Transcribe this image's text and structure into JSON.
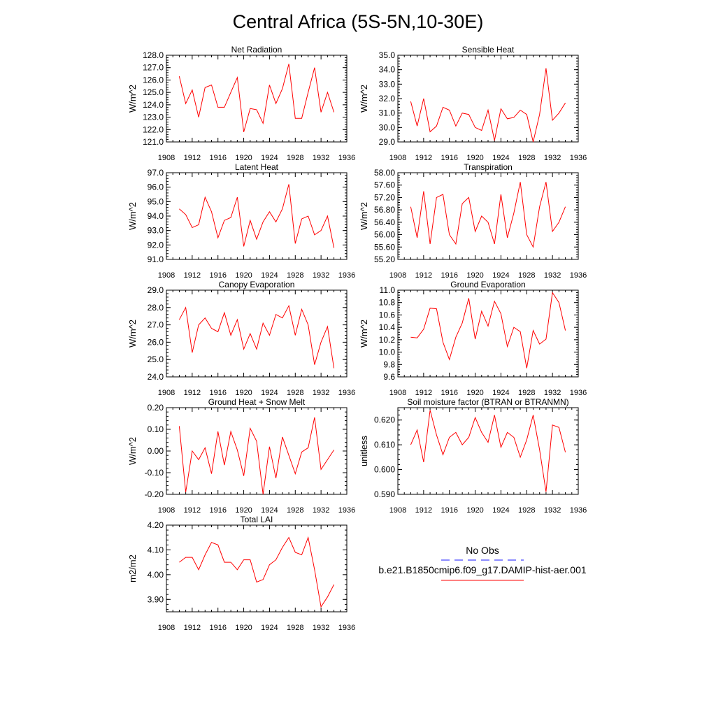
{
  "page_title": "Central Africa (5S-5N,10-30E)",
  "legend": {
    "obs_label": "No Obs",
    "obs_color": "#1a1aff",
    "model_label": "b.e21.B1850cmip6.f09_g17.DAMIP-hist-aer.001",
    "model_color": "#ff0000"
  },
  "chart_data": [
    {
      "type": "line",
      "title": "Net Radiation",
      "ylabel": "W/m^2",
      "xlim": [
        1908,
        1936
      ],
      "x_ticks": [
        1908,
        1912,
        1916,
        1920,
        1924,
        1928,
        1932,
        1936
      ],
      "ylim": [
        121.0,
        128.0
      ],
      "y_ticks": [
        "121.0",
        "122.0",
        "123.0",
        "124.0",
        "125.0",
        "126.0",
        "127.0",
        "128.0"
      ],
      "x": [
        1910,
        1911,
        1912,
        1913,
        1914,
        1915,
        1916,
        1917,
        1918,
        1919,
        1920,
        1921,
        1922,
        1923,
        1924,
        1925,
        1926,
        1927,
        1928,
        1929,
        1930,
        1931,
        1932,
        1933,
        1934
      ],
      "values": [
        126.3,
        124.1,
        125.2,
        123.0,
        125.4,
        125.6,
        123.8,
        123.8,
        125.0,
        126.2,
        121.8,
        123.7,
        123.6,
        122.5,
        125.6,
        124.1,
        125.3,
        127.3,
        122.9,
        122.9,
        125.0,
        127.0,
        123.4,
        125.0,
        123.4
      ],
      "color": "#ff0000"
    },
    {
      "type": "line",
      "title": "Sensible Heat",
      "ylabel": "W/m^2",
      "xlim": [
        1908,
        1936
      ],
      "x_ticks": [
        1908,
        1912,
        1916,
        1920,
        1924,
        1928,
        1932,
        1936
      ],
      "ylim": [
        29.0,
        35.0
      ],
      "y_ticks": [
        "29.0",
        "30.0",
        "31.0",
        "32.0",
        "33.0",
        "34.0",
        "35.0"
      ],
      "x": [
        1910,
        1911,
        1912,
        1913,
        1914,
        1915,
        1916,
        1917,
        1918,
        1919,
        1920,
        1921,
        1922,
        1923,
        1924,
        1925,
        1926,
        1927,
        1928,
        1929,
        1930,
        1931,
        1932,
        1933,
        1934
      ],
      "values": [
        31.8,
        30.1,
        32.0,
        29.7,
        30.1,
        31.4,
        31.2,
        30.1,
        31.0,
        30.9,
        30.0,
        29.8,
        31.2,
        29.1,
        31.3,
        30.6,
        30.7,
        31.2,
        30.9,
        29.0,
        30.9,
        34.1,
        30.5,
        31.0,
        31.7
      ],
      "color": "#ff0000"
    },
    {
      "type": "line",
      "title": "Latent Heat",
      "ylabel": "W/m^2",
      "xlim": [
        1908,
        1936
      ],
      "x_ticks": [
        1908,
        1912,
        1916,
        1920,
        1924,
        1928,
        1932,
        1936
      ],
      "ylim": [
        91.0,
        97.0
      ],
      "y_ticks": [
        "91.0",
        "92.0",
        "93.0",
        "94.0",
        "95.0",
        "96.0",
        "97.0"
      ],
      "x": [
        1910,
        1911,
        1912,
        1913,
        1914,
        1915,
        1916,
        1917,
        1918,
        1919,
        1920,
        1921,
        1922,
        1923,
        1924,
        1925,
        1926,
        1927,
        1928,
        1929,
        1930,
        1931,
        1932,
        1933,
        1934
      ],
      "values": [
        94.5,
        94.1,
        93.2,
        93.4,
        95.3,
        94.3,
        92.5,
        93.7,
        93.9,
        95.3,
        91.9,
        93.7,
        92.4,
        93.6,
        94.3,
        93.6,
        94.5,
        96.2,
        92.1,
        93.8,
        94.0,
        92.7,
        93.0,
        94.0,
        91.8
      ],
      "color": "#ff0000"
    },
    {
      "type": "line",
      "title": "Transpiration",
      "ylabel": "W/m^2",
      "xlim": [
        1908,
        1936
      ],
      "x_ticks": [
        1908,
        1912,
        1916,
        1920,
        1924,
        1928,
        1932,
        1936
      ],
      "ylim": [
        55.2,
        58.0
      ],
      "y_ticks": [
        "55.20",
        "55.60",
        "56.00",
        "56.40",
        "56.80",
        "57.20",
        "57.60",
        "58.00"
      ],
      "x": [
        1910,
        1911,
        1912,
        1913,
        1914,
        1915,
        1916,
        1917,
        1918,
        1919,
        1920,
        1921,
        1922,
        1923,
        1924,
        1925,
        1926,
        1927,
        1928,
        1929,
        1930,
        1931,
        1932,
        1933,
        1934
      ],
      "values": [
        56.9,
        55.9,
        57.4,
        55.7,
        57.2,
        57.3,
        56.0,
        55.7,
        57.0,
        57.2,
        56.1,
        56.6,
        56.4,
        55.7,
        57.3,
        55.9,
        56.7,
        57.7,
        56.0,
        55.6,
        56.9,
        57.7,
        56.1,
        56.4,
        56.9
      ],
      "color": "#ff0000"
    },
    {
      "type": "line",
      "title": "Canopy Evaporation",
      "ylabel": "W/m^2",
      "xlim": [
        1908,
        1936
      ],
      "x_ticks": [
        1908,
        1912,
        1916,
        1920,
        1924,
        1928,
        1932,
        1936
      ],
      "ylim": [
        24.0,
        29.0
      ],
      "y_ticks": [
        "24.0",
        "25.0",
        "26.0",
        "27.0",
        "28.0",
        "29.0"
      ],
      "x": [
        1910,
        1911,
        1912,
        1913,
        1914,
        1915,
        1916,
        1917,
        1918,
        1919,
        1920,
        1921,
        1922,
        1923,
        1924,
        1925,
        1926,
        1927,
        1928,
        1929,
        1930,
        1931,
        1932,
        1933,
        1934
      ],
      "values": [
        27.3,
        28.0,
        25.4,
        27.0,
        27.4,
        26.8,
        26.6,
        27.7,
        26.4,
        27.3,
        25.6,
        26.5,
        25.6,
        27.1,
        26.4,
        27.6,
        27.4,
        28.1,
        26.4,
        27.9,
        27.0,
        24.7,
        26.0,
        26.9,
        24.5
      ],
      "color": "#ff0000"
    },
    {
      "type": "line",
      "title": "Ground Evaporation",
      "ylabel": "W/m^2",
      "xlim": [
        1908,
        1936
      ],
      "x_ticks": [
        1908,
        1912,
        1916,
        1920,
        1924,
        1928,
        1932,
        1936
      ],
      "ylim": [
        9.6,
        11.0
      ],
      "y_ticks": [
        "9.6",
        "9.8",
        "10.0",
        "10.2",
        "10.4",
        "10.6",
        "10.8",
        "11.0"
      ],
      "x": [
        1910,
        1911,
        1912,
        1913,
        1914,
        1915,
        1916,
        1917,
        1918,
        1919,
        1920,
        1921,
        1922,
        1923,
        1924,
        1925,
        1926,
        1927,
        1928,
        1929,
        1930,
        1931,
        1932,
        1933,
        1934
      ],
      "values": [
        10.24,
        10.23,
        10.37,
        10.71,
        10.7,
        10.16,
        9.88,
        10.24,
        10.47,
        10.87,
        10.21,
        10.66,
        10.42,
        10.82,
        10.62,
        10.09,
        10.4,
        10.33,
        9.74,
        10.35,
        10.13,
        10.21,
        10.96,
        10.8,
        10.35
      ],
      "color": "#ff0000"
    },
    {
      "type": "line",
      "title": "Ground Heat + Snow Melt",
      "ylabel": "W/m^2",
      "xlim": [
        1908,
        1936
      ],
      "x_ticks": [
        1908,
        1912,
        1916,
        1920,
        1924,
        1928,
        1932,
        1936
      ],
      "ylim": [
        -0.2,
        0.2
      ],
      "y_ticks": [
        "-0.20",
        "-0.10",
        "0.00",
        "0.10",
        "0.20"
      ],
      "x": [
        1910,
        1911,
        1912,
        1913,
        1914,
        1915,
        1916,
        1917,
        1918,
        1919,
        1920,
        1921,
        1922,
        1923,
        1924,
        1925,
        1926,
        1927,
        1928,
        1929,
        1930,
        1931,
        1932,
        1933,
        1934
      ],
      "values": [
        0.115,
        -0.19,
        0.0,
        -0.04,
        0.015,
        -0.105,
        0.09,
        -0.065,
        0.09,
        0.005,
        -0.115,
        0.105,
        0.045,
        -0.2,
        0.02,
        -0.125,
        0.065,
        -0.02,
        -0.105,
        -0.005,
        0.015,
        0.155,
        -0.085,
        -0.04,
        0.005
      ],
      "color": "#ff0000"
    },
    {
      "type": "line",
      "title": "Soil moisture factor (BTRAN or BTRANMN)",
      "ylabel": "unitless",
      "xlim": [
        1908,
        1936
      ],
      "x_ticks": [
        1908,
        1912,
        1916,
        1920,
        1924,
        1928,
        1932,
        1936
      ],
      "ylim": [
        0.59,
        0.625
      ],
      "y_ticks": [
        "0.590",
        "0.600",
        "0.610",
        "0.620"
      ],
      "x": [
        1910,
        1911,
        1912,
        1913,
        1914,
        1915,
        1916,
        1917,
        1918,
        1919,
        1920,
        1921,
        1922,
        1923,
        1924,
        1925,
        1926,
        1927,
        1928,
        1929,
        1930,
        1931,
        1932,
        1933,
        1934
      ],
      "values": [
        0.61,
        0.616,
        0.603,
        0.624,
        0.614,
        0.606,
        0.613,
        0.615,
        0.61,
        0.613,
        0.621,
        0.615,
        0.611,
        0.622,
        0.609,
        0.615,
        0.613,
        0.605,
        0.612,
        0.622,
        0.608,
        0.591,
        0.618,
        0.617,
        0.607
      ],
      "color": "#ff0000"
    },
    {
      "type": "line",
      "title": "Total LAI",
      "ylabel": "m2/m2",
      "xlim": [
        1908,
        1936
      ],
      "x_ticks": [
        1908,
        1912,
        1916,
        1920,
        1924,
        1928,
        1932,
        1936
      ],
      "ylim": [
        3.85,
        4.2
      ],
      "y_ticks": [
        "3.90",
        "4.00",
        "4.10",
        "4.20"
      ],
      "x": [
        1910,
        1911,
        1912,
        1913,
        1914,
        1915,
        1916,
        1917,
        1918,
        1919,
        1920,
        1921,
        1922,
        1923,
        1924,
        1925,
        1926,
        1927,
        1928,
        1929,
        1930,
        1931,
        1932,
        1933,
        1934
      ],
      "values": [
        4.05,
        4.07,
        4.07,
        4.02,
        4.08,
        4.13,
        4.12,
        4.05,
        4.05,
        4.02,
        4.06,
        4.06,
        3.97,
        3.98,
        4.04,
        4.06,
        4.11,
        4.15,
        4.09,
        4.08,
        4.15,
        4.02,
        3.87,
        3.91,
        3.96
      ],
      "color": "#ff0000"
    }
  ]
}
